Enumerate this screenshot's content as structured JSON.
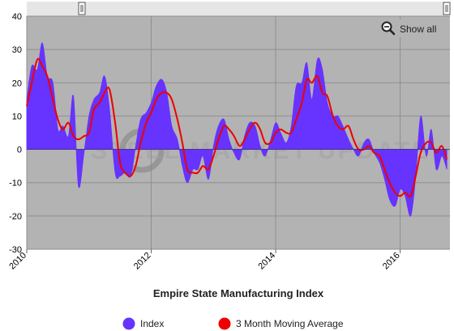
{
  "chart_data": {
    "type": "area",
    "title": "Empire State Manufacturing Index",
    "xlabel": "",
    "ylabel": "",
    "xlim": [
      2010.0,
      2016.8
    ],
    "ylim": [
      -30,
      40
    ],
    "yticks": [
      -30,
      -20,
      -10,
      0,
      10,
      20,
      30,
      40
    ],
    "xticks": [
      {
        "value": 2010,
        "label": "2010"
      },
      {
        "value": 2012,
        "label": "2012"
      },
      {
        "value": 2014,
        "label": "2014"
      },
      {
        "value": 2016,
        "label": "2016"
      }
    ],
    "grid": true,
    "legend_position": "bottom",
    "series": [
      {
        "name": "Index",
        "type": "area",
        "color": "#6633ff",
        "x": [
          2010.0,
          2010.08,
          2010.17,
          2010.25,
          2010.33,
          2010.42,
          2010.5,
          2010.58,
          2010.67,
          2010.75,
          2010.83,
          2010.92,
          2011.0,
          2011.08,
          2011.17,
          2011.25,
          2011.33,
          2011.42,
          2011.5,
          2011.58,
          2011.67,
          2011.75,
          2011.83,
          2011.92,
          2012.0,
          2012.08,
          2012.17,
          2012.25,
          2012.33,
          2012.42,
          2012.5,
          2012.58,
          2012.67,
          2012.75,
          2012.83,
          2012.92,
          2013.0,
          2013.08,
          2013.17,
          2013.25,
          2013.33,
          2013.42,
          2013.5,
          2013.58,
          2013.67,
          2013.75,
          2013.83,
          2013.92,
          2014.0,
          2014.08,
          2014.17,
          2014.25,
          2014.33,
          2014.42,
          2014.5,
          2014.58,
          2014.67,
          2014.75,
          2014.83,
          2014.92,
          2015.0,
          2015.08,
          2015.17,
          2015.25,
          2015.33,
          2015.42,
          2015.5,
          2015.58,
          2015.67,
          2015.75,
          2015.83,
          2015.92,
          2016.0,
          2016.08,
          2016.17,
          2016.25,
          2016.33,
          2016.42,
          2016.5,
          2016.58,
          2016.67,
          2016.75
        ],
        "values": [
          15,
          25,
          24,
          32,
          22,
          20,
          6,
          7,
          4,
          16,
          -11,
          -1,
          10,
          15,
          17,
          22,
          12,
          -7,
          -8,
          -7,
          -8,
          1,
          9,
          11,
          14,
          19,
          21,
          17,
          7,
          3,
          -5,
          -10,
          -6,
          -6,
          -2,
          -9,
          1,
          7,
          9,
          3,
          -1,
          -3,
          4,
          8,
          7,
          1,
          -2,
          3,
          8,
          5,
          2,
          7,
          19,
          20,
          26,
          15,
          27,
          24,
          14,
          10,
          10,
          7,
          3,
          0,
          -2,
          2,
          3,
          -1,
          -4,
          -9,
          -15,
          -17,
          -12,
          -14,
          -20,
          -8,
          10,
          -2,
          6,
          -6,
          -2,
          -6
        ]
      },
      {
        "name": "3 Month Moving Average",
        "type": "line",
        "color": "#ee0000",
        "x": [
          2010.0,
          2010.08,
          2010.17,
          2010.25,
          2010.33,
          2010.42,
          2010.5,
          2010.58,
          2010.67,
          2010.75,
          2010.83,
          2010.92,
          2011.0,
          2011.08,
          2011.17,
          2011.25,
          2011.33,
          2011.42,
          2011.5,
          2011.58,
          2011.67,
          2011.75,
          2011.83,
          2011.92,
          2012.0,
          2012.08,
          2012.17,
          2012.25,
          2012.33,
          2012.42,
          2012.5,
          2012.58,
          2012.67,
          2012.75,
          2012.83,
          2012.92,
          2013.0,
          2013.08,
          2013.17,
          2013.25,
          2013.33,
          2013.42,
          2013.5,
          2013.58,
          2013.67,
          2013.75,
          2013.83,
          2013.92,
          2014.0,
          2014.08,
          2014.17,
          2014.25,
          2014.33,
          2014.42,
          2014.5,
          2014.58,
          2014.67,
          2014.75,
          2014.83,
          2014.92,
          2015.0,
          2015.08,
          2015.17,
          2015.25,
          2015.33,
          2015.42,
          2015.5,
          2015.58,
          2015.67,
          2015.75,
          2015.83,
          2015.92,
          2016.0,
          2016.08,
          2016.17,
          2016.25,
          2016.33,
          2016.42,
          2016.5,
          2016.58,
          2016.67,
          2016.75
        ],
        "values": [
          13,
          20,
          27,
          25,
          22,
          15,
          9,
          6,
          8,
          4,
          3,
          4,
          5,
          12,
          14,
          17,
          18,
          8,
          -4,
          -7,
          -8,
          -5,
          2,
          8,
          11,
          15,
          17,
          17,
          15,
          9,
          2,
          -6,
          -7,
          -7,
          -5,
          -6,
          -2,
          3,
          7,
          6,
          4,
          1,
          3,
          6,
          8,
          6,
          2,
          2,
          5,
          6,
          5,
          5,
          9,
          14,
          21,
          20,
          22,
          17,
          16,
          10,
          7,
          6,
          7,
          3,
          0,
          0,
          1,
          -1,
          -2,
          -6,
          -10,
          -13,
          -14,
          -13,
          -14,
          -8,
          -1,
          2,
          2,
          -1,
          1,
          -3
        ]
      }
    ]
  },
  "controls": {
    "show_all_label": "Show all",
    "zoom_icon": "magnifier-minus-icon",
    "range_start_handle": "range-start-handle",
    "range_end_handle": "range-end-handle"
  },
  "watermark_text": "STEEL MARKET UPDATE",
  "colors": {
    "plot_background": "#b3b3b3",
    "grid": "#909090",
    "navigator_bar": "#e6e6e6"
  }
}
